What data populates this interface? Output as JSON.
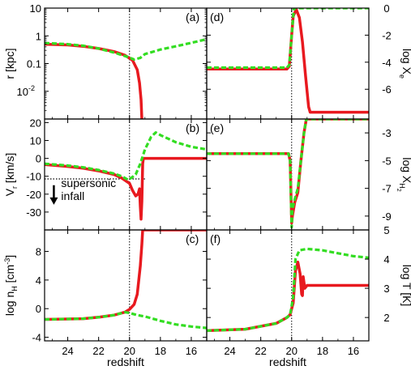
{
  "chart_data": {
    "type": "line",
    "layout": "3x2 grid of panels sharing a redshift x axis",
    "x_axis": {
      "label": "redshift",
      "range": [
        25.5,
        15
      ],
      "reversed": true,
      "ticks": [
        24,
        22,
        20,
        18,
        16
      ]
    },
    "marker_line": {
      "x": 20,
      "style": "dotted"
    },
    "series_styles": [
      {
        "style": "solid",
        "color": "#e8191f"
      },
      {
        "style": "dashed",
        "color": "#33dd22"
      }
    ],
    "panels": [
      {
        "id": "a",
        "label": "(a)",
        "ylabel": "r [kpc]",
        "scale": "log",
        "ylim": [
          0.001,
          10
        ],
        "ticks": [
          {
            "v": 10,
            "t": "10"
          },
          {
            "v": 1,
            "t": "1"
          },
          {
            "v": 0.1,
            "t": "0.1"
          },
          {
            "v": 0.01,
            "t": "10",
            "sup": "-2"
          }
        ],
        "series": [
          {
            "points": [
              [
                25.5,
                0.5
              ],
              [
                24,
                0.47
              ],
              [
                23,
                0.42
              ],
              [
                22,
                0.35
              ],
              [
                21,
                0.27
              ],
              [
                20.3,
                0.2
              ],
              [
                19.8,
                0.13
              ],
              [
                19.5,
                0.06
              ],
              [
                19.35,
                0.02
              ],
              [
                19.25,
                0.005
              ],
              [
                19.2,
                0.001
              ]
            ]
          },
          {
            "points": [
              [
                25.5,
                0.55
              ],
              [
                24,
                0.5
              ],
              [
                23,
                0.44
              ],
              [
                22,
                0.35
              ],
              [
                21,
                0.25
              ],
              [
                20.2,
                0.18
              ],
              [
                19.7,
                0.14
              ],
              [
                19.3,
                0.16
              ],
              [
                19,
                0.22
              ],
              [
                18,
                0.32
              ],
              [
                17,
                0.42
              ],
              [
                16,
                0.56
              ],
              [
                15,
                0.75
              ]
            ]
          }
        ]
      },
      {
        "id": "b",
        "label": "(b)",
        "ylabel": "V",
        "ylabel_sub": "r",
        "ylabel_rest": " [km/s]",
        "scale": "linear",
        "ylim": [
          -40,
          22
        ],
        "ticks": [
          {
            "v": 20,
            "t": "20"
          },
          {
            "v": 10,
            "t": "10"
          },
          {
            "v": 0,
            "t": "0"
          },
          {
            "v": -10,
            "t": "-10"
          },
          {
            "v": -20,
            "t": "-20"
          },
          {
            "v": -30,
            "t": "-30"
          }
        ],
        "hline": {
          "y": -11.5,
          "style": "dotted",
          "from": 25.5,
          "to": 19
        },
        "annotation": {
          "lines": [
            "supersonic",
            "infall"
          ],
          "arrow": "down"
        },
        "series": [
          {
            "points": [
              [
                25.5,
                -3.5
              ],
              [
                24,
                -4.5
              ],
              [
                23,
                -5.5
              ],
              [
                22,
                -7
              ],
              [
                21,
                -9
              ],
              [
                20.5,
                -11
              ],
              [
                20,
                -14
              ],
              [
                19.8,
                -18
              ],
              [
                19.6,
                -21
              ],
              [
                19.45,
                -20
              ],
              [
                19.35,
                -17
              ],
              [
                19.3,
                -27
              ],
              [
                19.25,
                -34
              ],
              [
                19.2,
                -24
              ],
              [
                19.15,
                -3
              ],
              [
                19.1,
                0
              ],
              [
                18.5,
                0
              ],
              [
                17,
                0
              ],
              [
                15,
                0
              ]
            ]
          },
          {
            "points": [
              [
                25.5,
                -3
              ],
              [
                24,
                -4
              ],
              [
                23,
                -5
              ],
              [
                22,
                -6.5
              ],
              [
                21,
                -8.5
              ],
              [
                20.5,
                -10
              ],
              [
                20.1,
                -12
              ],
              [
                19.9,
                -11
              ],
              [
                19.6,
                -9
              ],
              [
                19.3,
                -3
              ],
              [
                19,
                5
              ],
              [
                18.6,
                12
              ],
              [
                18.3,
                14.5
              ],
              [
                18,
                13
              ],
              [
                17,
                9
              ],
              [
                16,
                6.5
              ],
              [
                15,
                5
              ]
            ]
          }
        ]
      },
      {
        "id": "c",
        "label": "(c)",
        "ylabel": "log n",
        "ylabel_sub": "H",
        "ylabel_rest": " [cm",
        "ylabel_sup": "-3",
        "ylabel_end": "]",
        "scale": "linear",
        "ylim": [
          -4.5,
          11
        ],
        "ticks": [
          {
            "v": 8,
            "t": "8"
          },
          {
            "v": 4,
            "t": "4"
          },
          {
            "v": 0,
            "t": "0"
          },
          {
            "v": -4,
            "t": "-4"
          }
        ],
        "series": [
          {
            "points": [
              [
                25.5,
                -1.5
              ],
              [
                24,
                -1.45
              ],
              [
                23,
                -1.4
              ],
              [
                22,
                -1.2
              ],
              [
                21,
                -0.9
              ],
              [
                20.3,
                -0.5
              ],
              [
                20,
                -0.1
              ],
              [
                19.7,
                0.6
              ],
              [
                19.5,
                2
              ],
              [
                19.3,
                6
              ],
              [
                19.2,
                9
              ],
              [
                19.15,
                11
              ],
              [
                15,
                11
              ]
            ]
          },
          {
            "points": [
              [
                25.5,
                -1.5
              ],
              [
                24,
                -1.45
              ],
              [
                23,
                -1.4
              ],
              [
                22,
                -1.2
              ],
              [
                21,
                -0.9
              ],
              [
                20.3,
                -0.5
              ],
              [
                20,
                -0.6
              ],
              [
                19.5,
                -0.9
              ],
              [
                19,
                -1.1
              ],
              [
                18,
                -1.7
              ],
              [
                17,
                -2.2
              ],
              [
                16,
                -2.5
              ],
              [
                15,
                -2.7
              ]
            ]
          }
        ]
      },
      {
        "id": "d",
        "label": "(d)",
        "ylabel": "log X",
        "ylabel_sub": "e",
        "scale": "linear",
        "ylim": [
          -8.2,
          0
        ],
        "ticks": [
          {
            "v": 0,
            "t": "0"
          },
          {
            "v": -2,
            "t": "-2"
          },
          {
            "v": -4,
            "t": "-4"
          },
          {
            "v": -6,
            "t": "-6"
          }
        ],
        "series": [
          {
            "points": [
              [
                25.5,
                -4.5
              ],
              [
                21,
                -4.5
              ],
              [
                20.3,
                -4.5
              ],
              [
                20.15,
                -4.3
              ],
              [
                20,
                -2
              ],
              [
                19.9,
                -0.6
              ],
              [
                19.7,
                -0.1
              ],
              [
                19.5,
                -0.7
              ],
              [
                19.3,
                -2.5
              ],
              [
                19.1,
                -5
              ],
              [
                18.9,
                -7.3
              ],
              [
                18.8,
                -7.7
              ],
              [
                15,
                -7.7
              ]
            ]
          },
          {
            "points": [
              [
                25.5,
                -4.4
              ],
              [
                21,
                -4.4
              ],
              [
                20.3,
                -4.4
              ],
              [
                20.15,
                -4.2
              ],
              [
                20,
                -2
              ],
              [
                19.85,
                0
              ],
              [
                15,
                0
              ]
            ]
          }
        ]
      },
      {
        "id": "e",
        "label": "(e)",
        "ylabel": "log X",
        "ylabel_sub": "H",
        "ylabel_subsub": "2",
        "scale": "linear",
        "ylim": [
          -10,
          -2
        ],
        "ticks": [
          {
            "v": -3,
            "t": "-3"
          },
          {
            "v": -5,
            "t": "-5"
          },
          {
            "v": -7,
            "t": "-7"
          },
          {
            "v": -9,
            "t": "-9"
          }
        ],
        "series": [
          {
            "points": [
              [
                25.5,
                -4.5
              ],
              [
                21,
                -4.5
              ],
              [
                20.2,
                -4.5
              ],
              [
                20.1,
                -5
              ],
              [
                20.05,
                -7
              ],
              [
                20,
                -9.5
              ],
              [
                19.95,
                -9
              ],
              [
                19.8,
                -8
              ],
              [
                19.6,
                -7.3
              ],
              [
                19.4,
                -5
              ],
              [
                19.2,
                -3
              ],
              [
                19.05,
                -2
              ],
              [
                15,
                -2
              ]
            ]
          },
          {
            "points": [
              [
                25.5,
                -4.5
              ],
              [
                21,
                -4.5
              ],
              [
                20.2,
                -4.5
              ],
              [
                20.1,
                -5
              ],
              [
                20.05,
                -7.5
              ],
              [
                20,
                -9.8
              ],
              [
                19.95,
                -8.5
              ],
              [
                19.8,
                -7.8
              ],
              [
                19.6,
                -7
              ],
              [
                19.4,
                -5
              ],
              [
                19.2,
                -3
              ],
              [
                19.05,
                -2
              ],
              [
                15,
                -2
              ]
            ]
          }
        ]
      },
      {
        "id": "f",
        "label": "(f)",
        "ylabel": "log T [K]",
        "scale": "linear",
        "ylim": [
          1.2,
          5
        ],
        "ticks": [
          {
            "v": 5,
            "t": "5"
          },
          {
            "v": 4,
            "t": "4"
          },
          {
            "v": 3,
            "t": "3"
          },
          {
            "v": 2,
            "t": "2"
          }
        ],
        "series": [
          {
            "points": [
              [
                25.5,
                1.55
              ],
              [
                23,
                1.6
              ],
              [
                21,
                1.8
              ],
              [
                20.3,
                2.0
              ],
              [
                20.1,
                2.1
              ],
              [
                19.9,
                2.5
              ],
              [
                19.75,
                3.6
              ],
              [
                19.6,
                3.9
              ],
              [
                19.45,
                3.5
              ],
              [
                19.35,
                2.8
              ],
              [
                19.3,
                2.75
              ],
              [
                19.25,
                3.4
              ],
              [
                19.15,
                3.0
              ],
              [
                19,
                3.1
              ],
              [
                15,
                3.1
              ]
            ]
          },
          {
            "points": [
              [
                25.5,
                1.55
              ],
              [
                23,
                1.6
              ],
              [
                21,
                1.8
              ],
              [
                20.3,
                2.0
              ],
              [
                20.1,
                2.1
              ],
              [
                19.9,
                2.7
              ],
              [
                19.75,
                4.0
              ],
              [
                19.5,
                4.3
              ],
              [
                19,
                4.35
              ],
              [
                18,
                4.3
              ],
              [
                17,
                4.2
              ],
              [
                16,
                4.1
              ],
              [
                15,
                4.05
              ]
            ]
          }
        ]
      }
    ]
  }
}
